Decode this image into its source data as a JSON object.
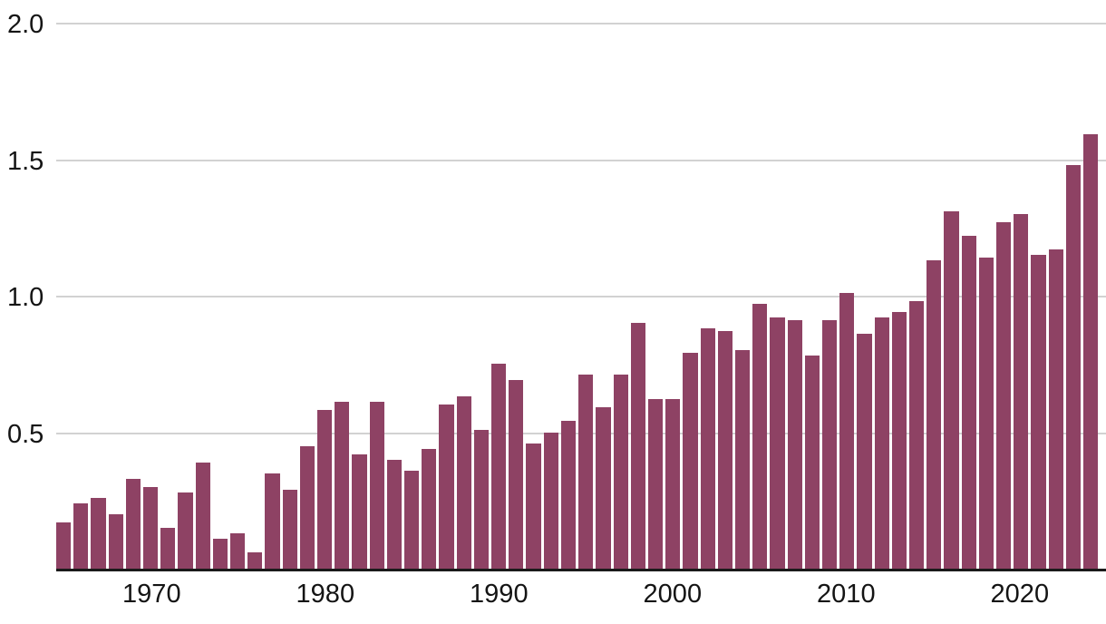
{
  "chart_data": {
    "type": "bar",
    "title": "",
    "xlabel": "",
    "ylabel": "",
    "x": [
      1965,
      1966,
      1967,
      1968,
      1969,
      1970,
      1971,
      1972,
      1973,
      1974,
      1975,
      1976,
      1977,
      1978,
      1979,
      1980,
      1981,
      1982,
      1983,
      1984,
      1985,
      1986,
      1987,
      1988,
      1989,
      1990,
      1991,
      1992,
      1993,
      1994,
      1995,
      1996,
      1997,
      1998,
      1999,
      2000,
      2001,
      2002,
      2003,
      2004,
      2005,
      2006,
      2007,
      2008,
      2009,
      2010,
      2011,
      2012,
      2013,
      2014,
      2015,
      2016,
      2017,
      2018,
      2019,
      2020,
      2021,
      2022,
      2023,
      2024
    ],
    "values": [
      0.17,
      0.24,
      0.26,
      0.2,
      0.33,
      0.3,
      0.15,
      0.28,
      0.39,
      0.11,
      0.13,
      0.06,
      0.35,
      0.29,
      0.45,
      0.58,
      0.61,
      0.42,
      0.61,
      0.4,
      0.36,
      0.44,
      0.6,
      0.63,
      0.51,
      0.75,
      0.69,
      0.46,
      0.5,
      0.54,
      0.71,
      0.59,
      0.71,
      0.9,
      0.62,
      0.62,
      0.79,
      0.88,
      0.87,
      0.8,
      0.97,
      0.92,
      0.91,
      0.78,
      0.91,
      1.01,
      0.86,
      0.92,
      0.94,
      0.98,
      1.13,
      1.31,
      1.22,
      1.14,
      1.27,
      1.3,
      1.15,
      1.17,
      1.48,
      1.59
    ],
    "ylim": [
      0,
      2.0
    ],
    "ytick_values": [
      2.0,
      1.5,
      1.0,
      0.5
    ],
    "ytick_labels": [
      "2.0",
      "1.5",
      "1.0",
      "0.5"
    ],
    "xtick_values": [
      1970,
      1980,
      1990,
      2000,
      2010,
      2020
    ],
    "xtick_labels": [
      "1970",
      "1980",
      "1990",
      "2000",
      "2010",
      "2020"
    ],
    "grid": true,
    "legend": false,
    "colors": {
      "bar": "#8e4264",
      "gridline": "#d2d2d2",
      "axis_line": "#1a1a1a",
      "tick_text": "#141414",
      "background": "#ffffff"
    }
  }
}
